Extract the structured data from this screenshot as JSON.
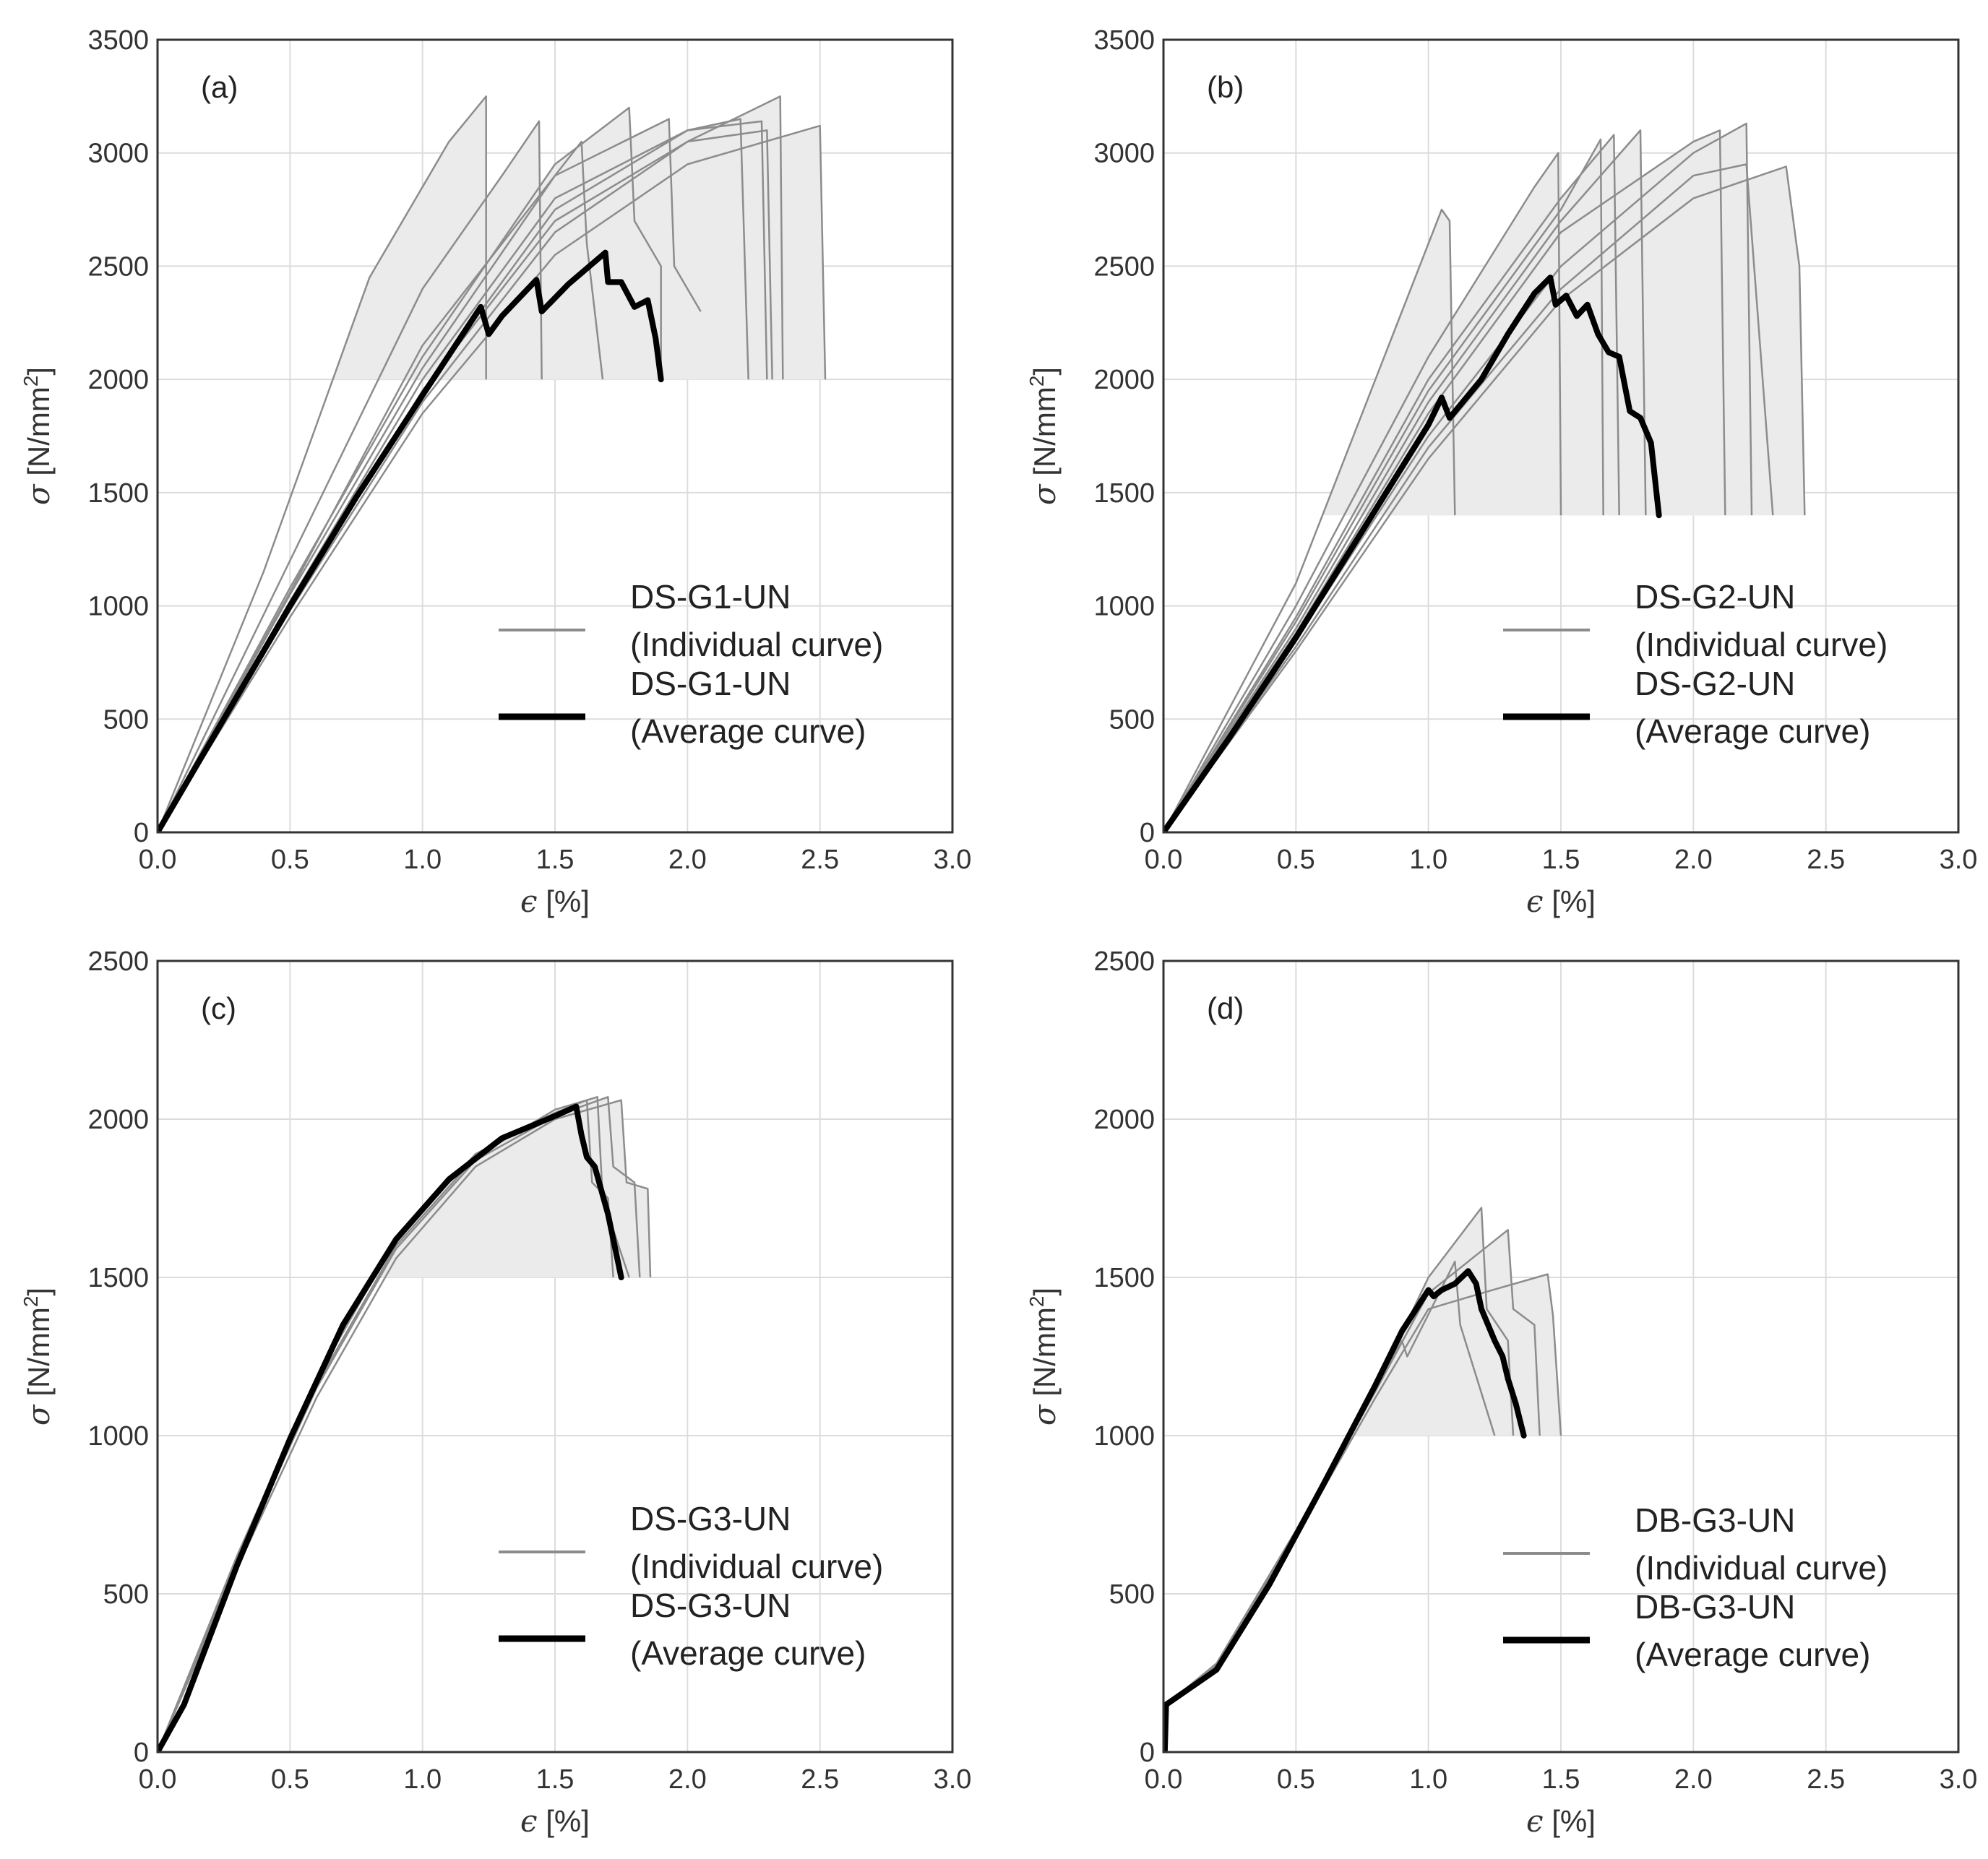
{
  "colors": {
    "individual": "#8c8c8c",
    "average": "#000000",
    "envelope_fill": "#ebebeb",
    "grid": "#dcdcdc",
    "frame": "#333333"
  },
  "chart_data": [
    {
      "type": "line",
      "panel_label": "(a)",
      "xlabel_symbol": "ϵ",
      "xlabel_unit": "[%]",
      "ylabel_symbol": "σ",
      "ylabel_unit": "[N/mm",
      "ylabel_sup": "2",
      "ylabel_close": "]",
      "xlim": [
        0,
        3.0
      ],
      "ylim": [
        0,
        3500
      ],
      "xticks": [
        "0.0",
        "0.5",
        "1.0",
        "1.5",
        "2.0",
        "2.5",
        "3.0"
      ],
      "yticks": [
        "0",
        "500",
        "1000",
        "1500",
        "2000",
        "2500",
        "3000",
        "3500"
      ],
      "legend": {
        "individual": [
          "DS-G1-UN",
          "(Individual curve)"
        ],
        "average": [
          "DS-G1-UN",
          "(Average curve)"
        ]
      },
      "envelope_floor": 2000,
      "individual_series": [
        {
          "x": [
            0,
            0.4,
            0.8,
            1.1,
            1.24,
            1.24
          ],
          "y": [
            0,
            1150,
            2450,
            3050,
            3250,
            2000
          ]
        },
        {
          "x": [
            0,
            0.5,
            1.0,
            1.3,
            1.44,
            1.45
          ],
          "y": [
            0,
            1200,
            2400,
            2900,
            3140,
            2000
          ]
        },
        {
          "x": [
            0,
            0.5,
            1.0,
            1.5,
            1.78,
            1.8,
            1.9,
            1.9
          ],
          "y": [
            0,
            1080,
            2100,
            2950,
            3200,
            2700,
            2500,
            2000
          ]
        },
        {
          "x": [
            0,
            0.5,
            1.0,
            1.5,
            1.93,
            1.95,
            2.05
          ],
          "y": [
            0,
            1050,
            2050,
            2900,
            3150,
            2500,
            2300
          ]
        },
        {
          "x": [
            0,
            0.5,
            1.0,
            1.5,
            2.0,
            2.2,
            2.23
          ],
          "y": [
            0,
            1000,
            1950,
            2750,
            3100,
            3150,
            2000
          ]
        },
        {
          "x": [
            0,
            0.5,
            1.0,
            1.5,
            2.0,
            2.35,
            2.36
          ],
          "y": [
            0,
            980,
            1900,
            2650,
            3050,
            3250,
            2000
          ]
        },
        {
          "x": [
            0,
            0.5,
            1.0,
            1.5,
            2.0,
            2.5,
            2.52
          ],
          "y": [
            0,
            950,
            1850,
            2550,
            2950,
            3120,
            2000
          ]
        },
        {
          "x": [
            0,
            0.5,
            1.0,
            1.5,
            2.0,
            2.28,
            2.3
          ],
          "y": [
            0,
            1020,
            2000,
            2800,
            3100,
            3140,
            2000
          ]
        },
        {
          "x": [
            0,
            0.5,
            1.0,
            1.6,
            1.62,
            1.68
          ],
          "y": [
            0,
            1060,
            2150,
            3050,
            2600,
            2000
          ]
        },
        {
          "x": [
            0,
            0.5,
            1.0,
            1.5,
            2.0,
            2.3,
            2.32
          ],
          "y": [
            0,
            990,
            1950,
            2700,
            3050,
            3100,
            2000
          ]
        }
      ],
      "average_series": {
        "x": [
          0,
          0.25,
          0.5,
          0.75,
          1.0,
          1.22,
          1.25,
          1.3,
          1.43,
          1.45,
          1.55,
          1.69,
          1.7,
          1.75,
          1.8,
          1.85,
          1.88,
          1.9
        ],
        "y": [
          0,
          500,
          1000,
          1480,
          1930,
          2320,
          2200,
          2280,
          2440,
          2300,
          2420,
          2560,
          2430,
          2430,
          2320,
          2350,
          2180,
          2000
        ]
      }
    },
    {
      "type": "line",
      "panel_label": "(b)",
      "xlabel_symbol": "ϵ",
      "xlabel_unit": "[%]",
      "ylabel_symbol": "σ",
      "ylabel_unit": "[N/mm",
      "ylabel_sup": "2",
      "ylabel_close": "]",
      "xlim": [
        0,
        3.0
      ],
      "ylim": [
        0,
        3500
      ],
      "xticks": [
        "0.0",
        "0.5",
        "1.0",
        "1.5",
        "2.0",
        "2.5",
        "3.0"
      ],
      "yticks": [
        "0",
        "500",
        "1000",
        "1500",
        "2000",
        "2500",
        "3000",
        "3500"
      ],
      "legend": {
        "individual": [
          "DS-G2-UN",
          "(Individual curve)"
        ],
        "average": [
          "DS-G2-UN",
          "(Average curve)"
        ]
      },
      "envelope_floor": 1400,
      "individual_series": [
        {
          "x": [
            0,
            0.5,
            0.9,
            1.05,
            1.08,
            1.1
          ],
          "y": [
            0,
            1100,
            2300,
            2750,
            2700,
            1400
          ]
        },
        {
          "x": [
            0,
            0.5,
            1.0,
            1.4,
            1.49,
            1.5
          ],
          "y": [
            0,
            1000,
            2100,
            2850,
            3000,
            1400
          ]
        },
        {
          "x": [
            0,
            0.5,
            1.0,
            1.5,
            1.7,
            1.72
          ],
          "y": [
            0,
            950,
            2000,
            2800,
            3080,
            1400
          ]
        },
        {
          "x": [
            0,
            0.5,
            1.0,
            1.5,
            1.8,
            1.82
          ],
          "y": [
            0,
            900,
            1900,
            2700,
            3100,
            1400
          ]
        },
        {
          "x": [
            0,
            0.5,
            1.0,
            1.5,
            2.0,
            2.2,
            2.22
          ],
          "y": [
            0,
            850,
            1750,
            2500,
            3000,
            3130,
            1400
          ]
        },
        {
          "x": [
            0,
            0.5,
            1.0,
            1.5,
            2.0,
            2.35,
            2.4,
            2.42
          ],
          "y": [
            0,
            800,
            1650,
            2350,
            2800,
            2940,
            2500,
            1400
          ]
        },
        {
          "x": [
            0,
            0.5,
            1.0,
            1.5,
            2.0,
            2.1,
            2.12
          ],
          "y": [
            0,
            880,
            1850,
            2650,
            3050,
            3100,
            1400
          ]
        },
        {
          "x": [
            0,
            0.5,
            1.0,
            1.5,
            1.65,
            1.66
          ],
          "y": [
            0,
            930,
            1950,
            2750,
            3060,
            1400
          ]
        },
        {
          "x": [
            0,
            0.5,
            1.0,
            1.5,
            2.0,
            2.2,
            2.3
          ],
          "y": [
            0,
            820,
            1700,
            2400,
            2900,
            2950,
            1400
          ]
        }
      ],
      "average_series": {
        "x": [
          0,
          0.25,
          0.5,
          0.75,
          1.0,
          1.05,
          1.08,
          1.2,
          1.3,
          1.4,
          1.46,
          1.48,
          1.52,
          1.56,
          1.6,
          1.64,
          1.68,
          1.72,
          1.76,
          1.8,
          1.84,
          1.87
        ],
        "y": [
          0,
          420,
          860,
          1330,
          1800,
          1920,
          1830,
          2000,
          2200,
          2380,
          2450,
          2330,
          2370,
          2280,
          2330,
          2200,
          2120,
          2100,
          1860,
          1830,
          1720,
          1400
        ]
      }
    },
    {
      "type": "line",
      "panel_label": "(c)",
      "xlabel_symbol": "ϵ",
      "xlabel_unit": "[%]",
      "ylabel_symbol": "σ",
      "ylabel_unit": "[N/mm",
      "ylabel_sup": "2",
      "ylabel_close": "]",
      "xlim": [
        0,
        3.0
      ],
      "ylim": [
        0,
        2500
      ],
      "xticks": [
        "0.0",
        "0.5",
        "1.0",
        "1.5",
        "2.0",
        "2.5",
        "3.0"
      ],
      "yticks": [
        "0",
        "500",
        "1000",
        "1500",
        "2000",
        "2500"
      ],
      "legend": {
        "individual": [
          "DS-G3-UN",
          "(Individual curve)"
        ],
        "average": [
          "DS-G3-UN",
          "(Average curve)"
        ]
      },
      "envelope_floor": 1500,
      "individual_series": [
        {
          "x": [
            0,
            0.3,
            0.6,
            0.9,
            1.2,
            1.5,
            1.62,
            1.64,
            1.7,
            1.72
          ],
          "y": [
            0,
            620,
            1180,
            1620,
            1890,
            2020,
            2060,
            1800,
            1750,
            1500
          ]
        },
        {
          "x": [
            0,
            0.3,
            0.6,
            0.9,
            1.2,
            1.5,
            1.7,
            1.72,
            1.8,
            1.82
          ],
          "y": [
            0,
            600,
            1150,
            1590,
            1870,
            2010,
            2070,
            1850,
            1800,
            1500
          ]
        },
        {
          "x": [
            0,
            0.3,
            0.6,
            0.9,
            1.2,
            1.5,
            1.75,
            1.77,
            1.85,
            1.86
          ],
          "y": [
            0,
            580,
            1120,
            1560,
            1850,
            2000,
            2060,
            1800,
            1780,
            1500
          ]
        },
        {
          "x": [
            0,
            0.3,
            0.6,
            0.9,
            1.2,
            1.5,
            1.66,
            1.68,
            1.78
          ],
          "y": [
            0,
            610,
            1160,
            1600,
            1880,
            2030,
            2070,
            1750,
            1500
          ]
        }
      ],
      "average_series": {
        "x": [
          0,
          0.1,
          0.3,
          0.5,
          0.7,
          0.9,
          1.1,
          1.3,
          1.5,
          1.58,
          1.6,
          1.62,
          1.65,
          1.68,
          1.7,
          1.72,
          1.75
        ],
        "y": [
          0,
          150,
          590,
          990,
          1350,
          1620,
          1810,
          1940,
          2010,
          2040,
          1950,
          1880,
          1850,
          1760,
          1700,
          1620,
          1500
        ]
      }
    },
    {
      "type": "line",
      "panel_label": "(d)",
      "xlabel_symbol": "ϵ",
      "xlabel_unit": "[%]",
      "ylabel_symbol": "σ",
      "ylabel_unit": "[N/mm",
      "ylabel_sup": "2",
      "ylabel_close": "]",
      "xlim": [
        0,
        3.0
      ],
      "ylim": [
        0,
        2500
      ],
      "xticks": [
        "0.0",
        "0.5",
        "1.0",
        "1.5",
        "2.0",
        "2.5",
        "3.0"
      ],
      "yticks": [
        "0",
        "500",
        "1000",
        "1500",
        "2000",
        "2500"
      ],
      "legend": {
        "individual": [
          "DB-G3-UN",
          "(Individual curve)"
        ],
        "average": [
          "DB-G3-UN",
          "(Average curve)"
        ]
      },
      "envelope_floor": 1000,
      "individual_series": [
        {
          "x": [
            0,
            0.01,
            0.2,
            0.5,
            0.8,
            1.0,
            1.2,
            1.22,
            1.3,
            1.32
          ],
          "y": [
            0,
            150,
            280,
            700,
            1150,
            1500,
            1720,
            1400,
            1300,
            1000
          ]
        },
        {
          "x": [
            0,
            0.01,
            0.2,
            0.5,
            0.8,
            1.0,
            1.3,
            1.32,
            1.4,
            1.42
          ],
          "y": [
            0,
            150,
            270,
            690,
            1140,
            1450,
            1650,
            1400,
            1350,
            1000
          ]
        },
        {
          "x": [
            0,
            0.01,
            0.2,
            0.5,
            0.8,
            1.0,
            1.2,
            1.45,
            1.47,
            1.5
          ],
          "y": [
            0,
            150,
            265,
            680,
            1120,
            1400,
            1450,
            1510,
            1380,
            1000
          ]
        },
        {
          "x": [
            0,
            0.01,
            0.2,
            0.5,
            0.8,
            0.9,
            0.92,
            1.1,
            1.12,
            1.25
          ],
          "y": [
            0,
            150,
            275,
            700,
            1150,
            1300,
            1250,
            1550,
            1350,
            1000
          ]
        }
      ],
      "average_series": {
        "x": [
          0,
          0.005,
          0.01,
          0.2,
          0.4,
          0.6,
          0.8,
          0.9,
          1.0,
          1.02,
          1.05,
          1.1,
          1.15,
          1.18,
          1.2,
          1.25,
          1.28,
          1.3,
          1.33,
          1.36
        ],
        "y": [
          0,
          0,
          150,
          260,
          530,
          840,
          1160,
          1330,
          1460,
          1440,
          1460,
          1480,
          1520,
          1480,
          1400,
          1300,
          1250,
          1180,
          1100,
          1000
        ]
      }
    }
  ]
}
